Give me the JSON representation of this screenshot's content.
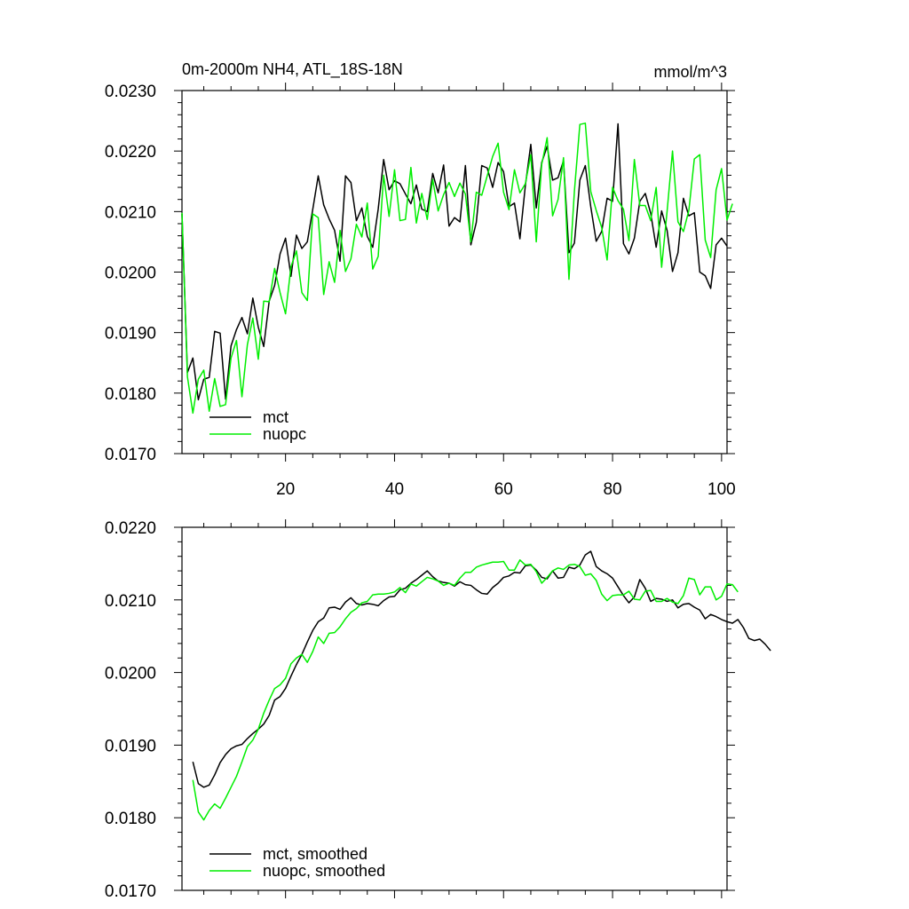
{
  "chart_data": [
    {
      "type": "line",
      "title": "0m-2000m NH4, ATL_18S-18N",
      "units": "mmol/m^3",
      "xlim": [
        1,
        101
      ],
      "ylim": [
        0.017,
        0.023
      ],
      "yticks": [
        "0.0230",
        "0.0220",
        "0.0210",
        "0.0200",
        "0.0190",
        "0.0180",
        "0.0170"
      ],
      "xticks": [
        "20",
        "40",
        "60",
        "80",
        "100"
      ],
      "legend": "bottom-left",
      "series": [
        {
          "name": "mct",
          "color": "#000000",
          "x_start": 1,
          "values": [
            0.02096,
            0.01834,
            0.01858,
            0.01789,
            0.01823,
            0.01826,
            0.01902,
            0.01899,
            0.0179,
            0.01878,
            0.01905,
            0.01925,
            0.01898,
            0.01957,
            0.01909,
            0.01877,
            0.01952,
            0.01978,
            0.0203,
            0.02056,
            0.01993,
            0.02061,
            0.02039,
            0.0205,
            0.02104,
            0.02159,
            0.02111,
            0.02088,
            0.02069,
            0.02018,
            0.02159,
            0.02148,
            0.02085,
            0.02106,
            0.02059,
            0.02041,
            0.02104,
            0.02186,
            0.02136,
            0.02151,
            0.02146,
            0.02129,
            0.02113,
            0.02144,
            0.02104,
            0.021,
            0.02163,
            0.02131,
            0.02177,
            0.02076,
            0.0209,
            0.02083,
            0.02176,
            0.02045,
            0.02082,
            0.02176,
            0.02172,
            0.0214,
            0.02181,
            0.02166,
            0.02108,
            0.02114,
            0.02055,
            0.02143,
            0.02211,
            0.02106,
            0.02181,
            0.02208,
            0.02152,
            0.02156,
            0.02184,
            0.02032,
            0.02048,
            0.02152,
            0.02176,
            0.02108,
            0.02051,
            0.02067,
            0.02122,
            0.02117,
            0.02245,
            0.02047,
            0.0203,
            0.02056,
            0.02117,
            0.0213,
            0.02097,
            0.02041,
            0.02101,
            0.02069,
            0.02001,
            0.02032,
            0.02122,
            0.02093,
            0.02098,
            0.02,
            0.01994,
            0.01973,
            0.02045,
            0.02056,
            0.02043
          ]
        },
        {
          "name": "nuopc",
          "color": "#00ee00",
          "x_start": 1,
          "values": [
            0.02098,
            0.01827,
            0.01767,
            0.01823,
            0.01838,
            0.0177,
            0.01824,
            0.01778,
            0.01781,
            0.01858,
            0.01887,
            0.01794,
            0.0188,
            0.01924,
            0.01856,
            0.01952,
            0.01951,
            0.02006,
            0.01966,
            0.01931,
            0.02009,
            0.02035,
            0.01966,
            0.01953,
            0.02096,
            0.0209,
            0.01963,
            0.02017,
            0.01983,
            0.02069,
            0.02001,
            0.02022,
            0.02079,
            0.02058,
            0.02114,
            0.02005,
            0.02026,
            0.0216,
            0.02092,
            0.02169,
            0.02085,
            0.02087,
            0.02173,
            0.02081,
            0.0213,
            0.02087,
            0.02153,
            0.02101,
            0.02128,
            0.02148,
            0.02125,
            0.02147,
            0.02129,
            0.0205,
            0.02132,
            0.02127,
            0.02159,
            0.02191,
            0.02213,
            0.02132,
            0.02103,
            0.02169,
            0.02131,
            0.02146,
            0.02194,
            0.0205,
            0.02178,
            0.02222,
            0.02093,
            0.0212,
            0.02189,
            0.01988,
            0.02134,
            0.02244,
            0.02246,
            0.02133,
            0.02102,
            0.02074,
            0.0202,
            0.0214,
            0.02118,
            0.02104,
            0.02052,
            0.02186,
            0.0211,
            0.0211,
            0.02085,
            0.0214,
            0.02008,
            0.021,
            0.022,
            0.02083,
            0.02067,
            0.02102,
            0.02187,
            0.02194,
            0.02053,
            0.02024,
            0.02136,
            0.02171,
            0.02086,
            0.02113
          ]
        }
      ]
    },
    {
      "type": "line",
      "xlim": [
        1,
        101
      ],
      "ylim": [
        0.017,
        0.022
      ],
      "yticks": [
        "0.0220",
        "0.0210",
        "0.0200",
        "0.0190",
        "0.0180",
        "0.0170"
      ],
      "legend": "bottom-left",
      "series": [
        {
          "name": "mct, smoothed",
          "color": "#000000",
          "x_start": 3,
          "values": [
            0.01877,
            0.01847,
            0.01842,
            0.01845,
            0.01859,
            0.01876,
            0.01887,
            0.01895,
            0.01899,
            0.01901,
            0.01909,
            0.01916,
            0.01922,
            0.01929,
            0.01941,
            0.01962,
            0.01967,
            0.01978,
            0.01995,
            0.02011,
            0.02025,
            0.02042,
            0.02058,
            0.0207,
            0.02075,
            0.02089,
            0.0209,
            0.02087,
            0.02097,
            0.02103,
            0.02095,
            0.02093,
            0.02095,
            0.02094,
            0.02092,
            0.02099,
            0.02104,
            0.02105,
            0.02114,
            0.02116,
            0.02123,
            0.02128,
            0.02134,
            0.0214,
            0.02132,
            0.02126,
            0.02124,
            0.02123,
            0.02119,
            0.02125,
            0.02121,
            0.0212,
            0.02114,
            0.02109,
            0.02108,
            0.02117,
            0.02123,
            0.02131,
            0.02133,
            0.02138,
            0.02137,
            0.02147,
            0.02148,
            0.02141,
            0.02131,
            0.02129,
            0.0214,
            0.0213,
            0.02131,
            0.02145,
            0.02143,
            0.02148,
            0.02162,
            0.02167,
            0.02146,
            0.0214,
            0.02136,
            0.0213,
            0.02118,
            0.02106,
            0.02096,
            0.02104,
            0.02128,
            0.02116,
            0.02098,
            0.02102,
            0.02101,
            0.02098,
            0.021,
            0.02089,
            0.02094,
            0.02095,
            0.0209,
            0.02086,
            0.02074,
            0.0208,
            0.02077,
            0.02073,
            0.0207,
            0.02068,
            0.02073,
            0.02062,
            0.02047,
            0.02044,
            0.02046,
            0.02039,
            0.0203
          ]
        },
        {
          "name": "nuopc, smoothed",
          "color": "#00ee00",
          "x_start": 3,
          "values": [
            0.01852,
            0.01808,
            0.01797,
            0.0181,
            0.01819,
            0.01813,
            0.01827,
            0.01842,
            0.01857,
            0.01877,
            0.01898,
            0.01907,
            0.01922,
            0.01944,
            0.01962,
            0.01978,
            0.01983,
            0.01992,
            0.02012,
            0.0202,
            0.02025,
            0.02014,
            0.02029,
            0.02049,
            0.0204,
            0.02054,
            0.02055,
            0.02063,
            0.02074,
            0.02083,
            0.02088,
            0.02096,
            0.02098,
            0.02107,
            0.02108,
            0.02108,
            0.02109,
            0.02111,
            0.02117,
            0.0211,
            0.02122,
            0.02119,
            0.02125,
            0.02131,
            0.02129,
            0.02126,
            0.0212,
            0.02123,
            0.0212,
            0.0213,
            0.02138,
            0.02138,
            0.02145,
            0.02148,
            0.0215,
            0.02152,
            0.02152,
            0.02153,
            0.02141,
            0.02141,
            0.02155,
            0.02148,
            0.02149,
            0.02139,
            0.02123,
            0.02131,
            0.0214,
            0.02144,
            0.02142,
            0.02148,
            0.02149,
            0.02146,
            0.02134,
            0.02136,
            0.02127,
            0.02108,
            0.02099,
            0.02106,
            0.02107,
            0.02107,
            0.02112,
            0.02101,
            0.021,
            0.02112,
            0.02113,
            0.02098,
            0.02098,
            0.02102,
            0.02097,
            0.02095,
            0.02106,
            0.0213,
            0.02128,
            0.02107,
            0.02118,
            0.02118,
            0.021,
            0.02105,
            0.02122,
            0.02121,
            0.02111
          ]
        }
      ]
    }
  ]
}
